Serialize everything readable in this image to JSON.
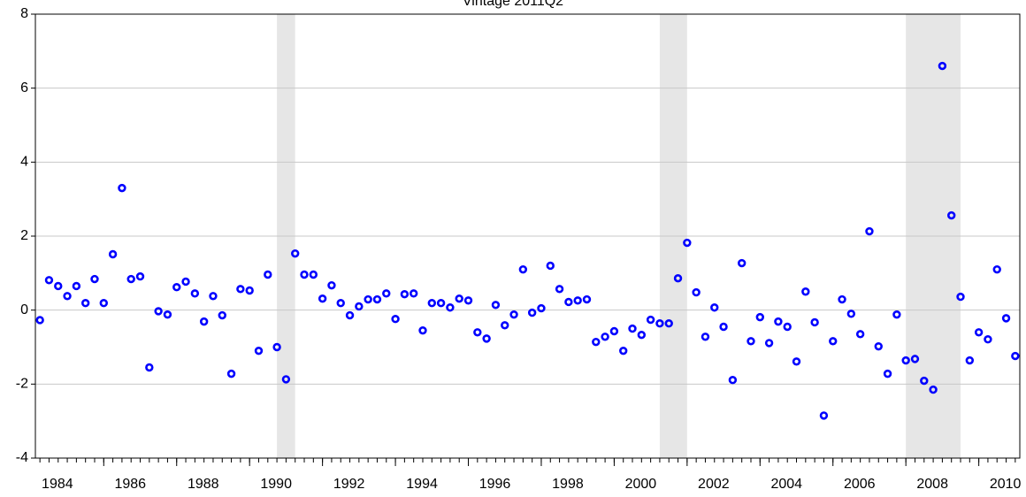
{
  "chart_data": {
    "type": "scatter",
    "title": "Vintage 2011Q2",
    "x": [
      1984.25,
      1984.5,
      1984.75,
      1985,
      1985.25,
      1985.5,
      1985.75,
      1986,
      1986.25,
      1986.5,
      1986.75,
      1987,
      1987.25,
      1987.5,
      1987.75,
      1988,
      1988.25,
      1988.5,
      1988.75,
      1989,
      1989.25,
      1989.5,
      1989.75,
      1990,
      1990.25,
      1990.5,
      1990.75,
      1991,
      1991.25,
      1991.5,
      1991.75,
      1992,
      1992.25,
      1992.5,
      1992.75,
      1993,
      1993.25,
      1993.5,
      1993.75,
      1994,
      1994.25,
      1994.5,
      1994.75,
      1995,
      1995.25,
      1995.5,
      1995.75,
      1996,
      1996.25,
      1996.5,
      1996.75,
      1997,
      1997.25,
      1997.5,
      1997.75,
      1998,
      1998.25,
      1998.5,
      1998.75,
      1999,
      1999.25,
      1999.5,
      1999.75,
      2000,
      2000.25,
      2000.5,
      2000.75,
      2001,
      2001.25,
      2001.5,
      2001.75,
      2002,
      2002.25,
      2002.5,
      2002.75,
      2003,
      2003.25,
      2003.5,
      2003.75,
      2004,
      2004.25,
      2004.5,
      2004.75,
      2005,
      2005.25,
      2005.5,
      2005.75,
      2006,
      2006.25,
      2006.5,
      2006.75,
      2007,
      2007.25,
      2007.5,
      2007.75,
      2008,
      2008.25,
      2008.5,
      2008.75,
      2009,
      2009.25,
      2009.5,
      2009.75,
      2010,
      2010.25,
      2010.5,
      2010.75,
      2011
    ],
    "series": [
      {
        "color": "#0000ff",
        "values": [
          -0.27,
          0.81,
          0.65,
          0.38,
          0.65,
          0.19,
          0.84,
          0.19,
          1.51,
          3.3,
          0.84,
          0.91,
          -1.55,
          -0.03,
          -0.12,
          0.62,
          0.77,
          0.45,
          -0.31,
          0.38,
          -0.14,
          -1.72,
          0.57,
          0.53,
          -1.1,
          0.96,
          -1.0,
          -1.87,
          1.53,
          0.96,
          0.96,
          0.31,
          0.67,
          0.19,
          -0.14,
          0.1,
          0.29,
          0.29,
          0.45,
          -0.24,
          0.43,
          0.45,
          -0.55,
          0.19,
          0.19,
          0.07,
          0.31,
          0.26,
          -0.6,
          -0.77,
          0.14,
          -0.41,
          -0.12,
          1.1,
          -0.07,
          0.05,
          1.2,
          0.57,
          0.22,
          0.26,
          0.29,
          -0.86,
          -0.72,
          -0.57,
          -1.1,
          -0.5,
          -0.67,
          -0.26,
          -0.36,
          -0.36,
          0.86,
          1.82,
          0.48,
          -0.72,
          0.07,
          -0.45,
          -1.89,
          1.27,
          -0.84,
          -0.19,
          -0.89,
          -0.31,
          -0.45,
          -1.39,
          0.5,
          -0.33,
          -2.85,
          -0.84,
          0.29,
          -0.1,
          -0.65,
          2.13,
          -0.98,
          -1.72,
          -0.12,
          -1.36,
          -1.32,
          -1.91,
          -2.15,
          6.6,
          2.56,
          0.36,
          -1.36,
          -0.6,
          -0.79,
          1.1,
          -0.22,
          -1.24
        ]
      }
    ],
    "shaded_periods": [
      [
        1990.75,
        1991.25
      ],
      [
        2001.25,
        2002.0
      ],
      [
        2008.0,
        2009.5
      ]
    ],
    "shade_color": "#e6e6e6",
    "xlim": [
      1984.125,
      2011.125
    ],
    "xticks": [
      1984,
      1986,
      1988,
      1990,
      1992,
      1994,
      1996,
      1998,
      2000,
      2002,
      2004,
      2006,
      2008,
      2010
    ],
    "ylim": [
      -4,
      8
    ],
    "yticks": [
      -4,
      -2,
      0,
      2,
      4,
      6,
      8
    ],
    "grid": true
  }
}
